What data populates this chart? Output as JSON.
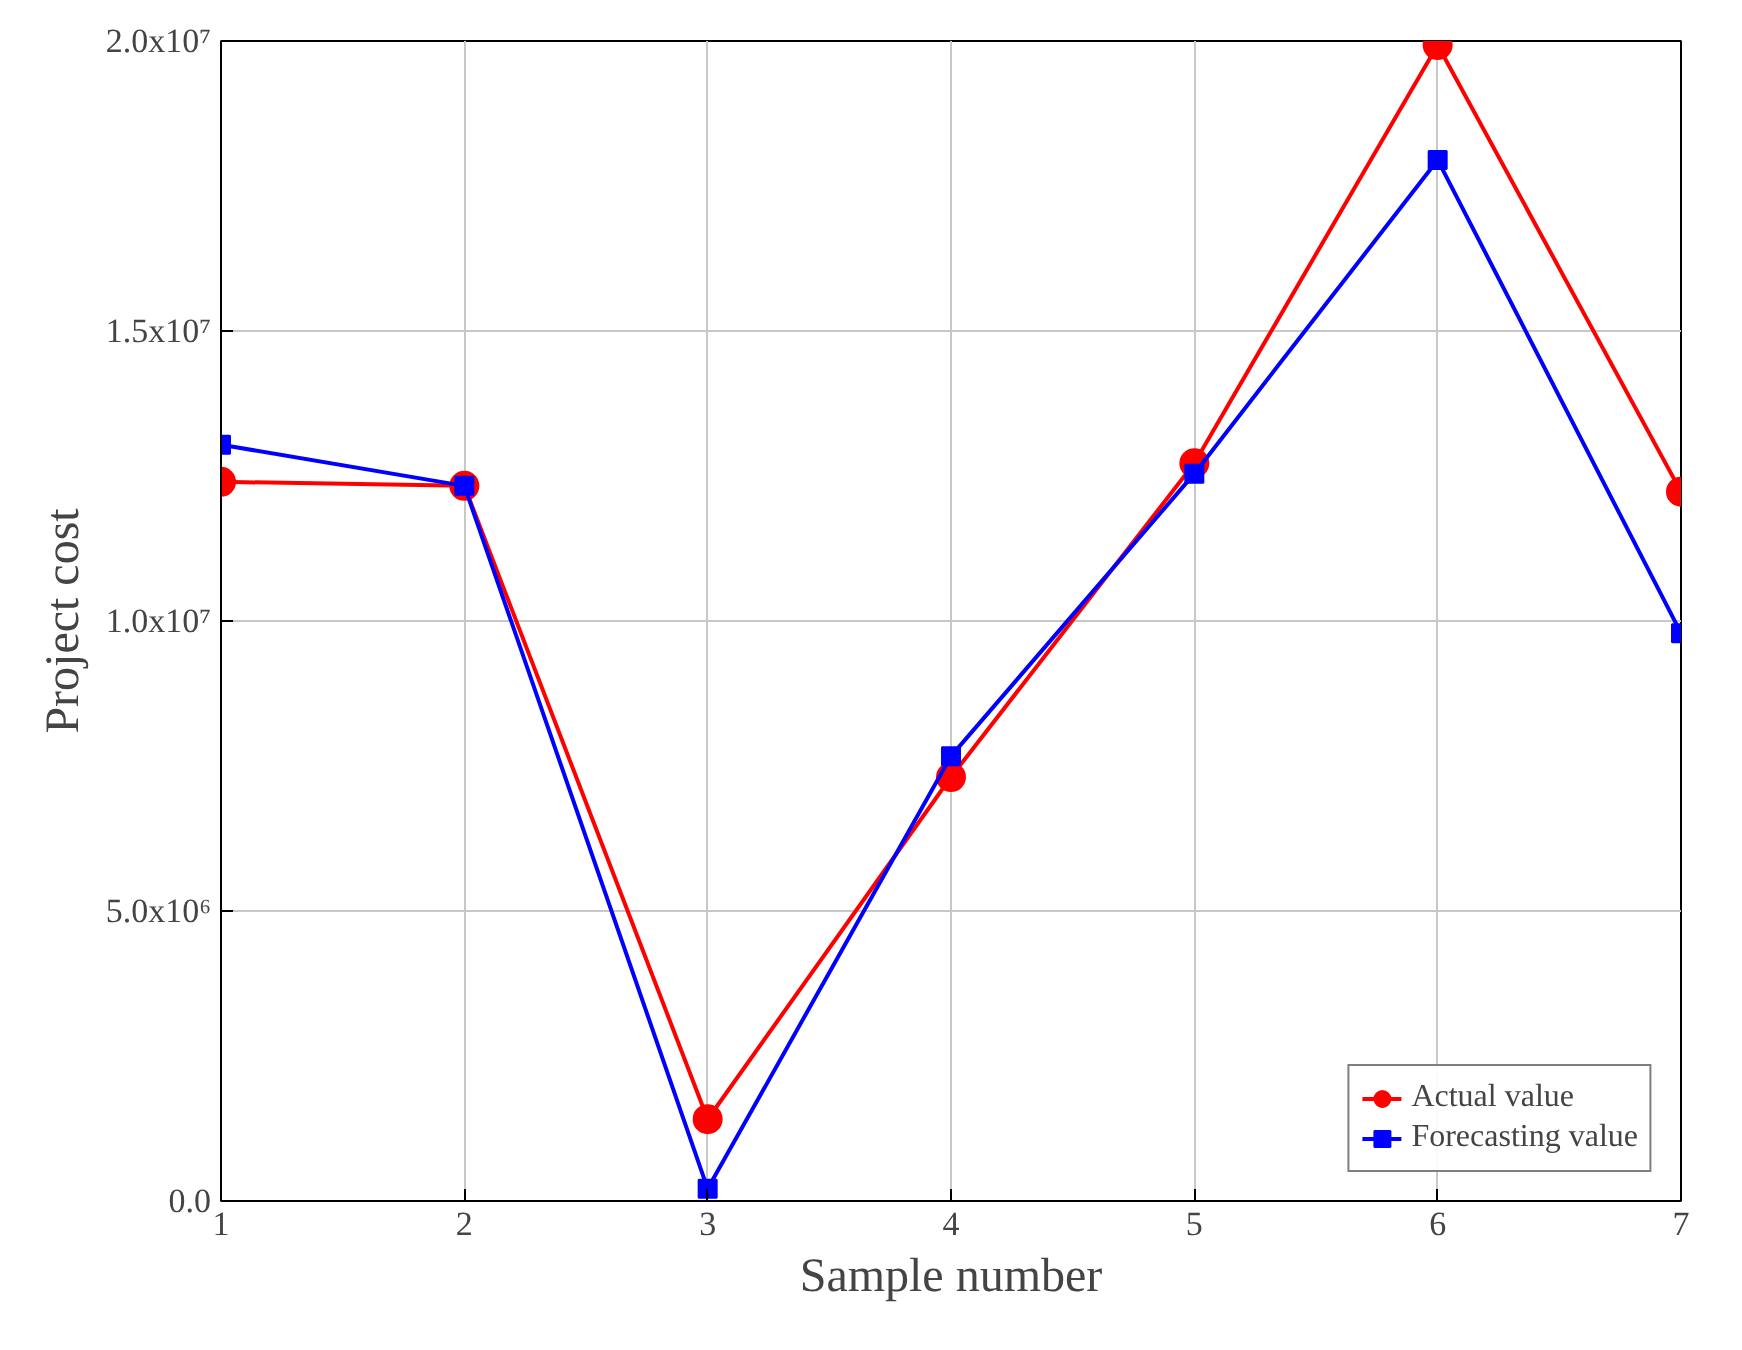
{
  "chart_data": {
    "type": "line",
    "xlabel": "Sample number",
    "ylabel": "Project cost",
    "x": [
      1,
      2,
      3,
      4,
      5,
      6,
      7
    ],
    "series": [
      {
        "name": "Actual value",
        "color": "#ff0000",
        "marker": "circle",
        "values": [
          12400000.0,
          12330000.0,
          1410000.0,
          7310000.0,
          12720000.0,
          19930000.0,
          12230000.0
        ]
      },
      {
        "name": "Forecasting value",
        "color": "#0000ff",
        "marker": "square",
        "values": [
          13040000.0,
          12330000.0,
          210000.0,
          7670000.0,
          12540000.0,
          17950000.0,
          9790000.0
        ]
      }
    ],
    "xlim": [
      1,
      7
    ],
    "xticks": [
      1,
      2,
      3,
      4,
      5,
      6,
      7
    ],
    "ylim": [
      0,
      20000000
    ],
    "yticks": [
      {
        "value": 0,
        "label": "0.0"
      },
      {
        "value": 5000000,
        "label": "5.0x10⁶"
      },
      {
        "value": 10000000,
        "label": "1.0x10⁷"
      },
      {
        "value": 15000000,
        "label": "1.5x10⁷"
      },
      {
        "value": 20000000,
        "label": "2.0x10⁷"
      }
    ],
    "grid": true,
    "legend": "bottom right",
    "line_style": "solid"
  }
}
